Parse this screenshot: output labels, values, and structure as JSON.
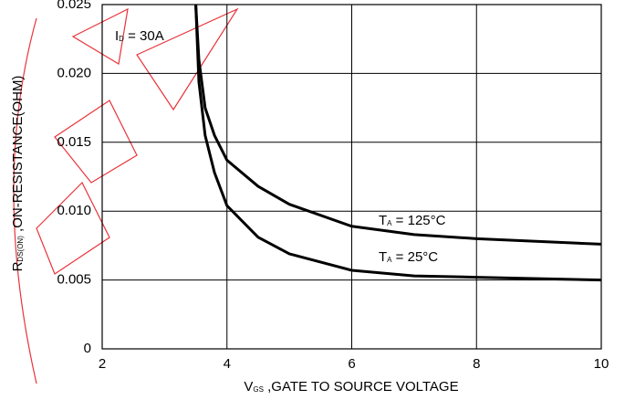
{
  "chart_data": {
    "type": "line",
    "x_label": [
      "V",
      "GS",
      " ,GATE TO SOURCE VOLTAGE"
    ],
    "y_label": [
      "R",
      "DS(ON)",
      " ,ON-RESISTANCE(OHM)"
    ],
    "annotation": [
      "I",
      "D",
      " = 30A"
    ],
    "x": [
      3.5,
      3.55,
      3.65,
      3.8,
      4,
      4.5,
      5,
      6,
      7,
      8,
      10
    ],
    "series": [
      {
        "label": [
          "T",
          "A",
          " = 125°C"
        ],
        "color": "#000000",
        "values": [
          0.025,
          0.021,
          0.0175,
          0.0155,
          0.0137,
          0.0118,
          0.0105,
          0.0089,
          0.0083,
          0.008,
          0.0076
        ]
      },
      {
        "label": [
          "T",
          "A",
          " = 25°C"
        ],
        "color": "#000000",
        "values": [
          0.025,
          0.0194,
          0.0155,
          0.0128,
          0.0104,
          0.0081,
          0.0069,
          0.0057,
          0.0053,
          0.0052,
          0.005
        ]
      }
    ],
    "xlim": [
      2,
      10
    ],
    "xticks": [
      2,
      4,
      6,
      8,
      10
    ],
    "ylim": [
      0,
      0.025
    ],
    "yticks": [
      0,
      0.005,
      {
        "value": 0.01,
        "label": "0.010"
      },
      0.015,
      {
        "value": 0.02,
        "label": "0.020"
      },
      0.025
    ],
    "grid": true
  }
}
